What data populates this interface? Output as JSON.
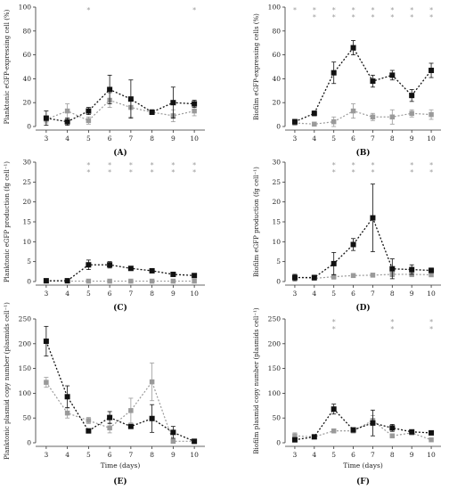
{
  "colors": {
    "black_series": "#111111",
    "gray_series": "#9a9a9a",
    "axis": "#333333"
  },
  "chart_data": [
    {
      "type": "line",
      "panel_label": "(A)",
      "ylabel": "Planktonic eGFP-expressing cell (%)",
      "xlabel": "",
      "x": [
        3,
        4,
        5,
        6,
        7,
        8,
        9,
        10
      ],
      "ylim": [
        0,
        100
      ],
      "yticks": [
        0,
        20,
        40,
        60,
        80,
        100
      ],
      "series": [
        {
          "values": [
            7,
            4,
            13,
            31,
            23,
            12,
            20,
            19
          ],
          "errors": [
            6,
            3,
            3,
            12,
            16,
            2,
            13,
            3
          ]
        },
        {
          "values": [
            6,
            13,
            5,
            22,
            16,
            12,
            9,
            13
          ],
          "errors": [
            3,
            6,
            3,
            6,
            8,
            2,
            5,
            4
          ]
        }
      ],
      "stars": [
        {
          "x": 5,
          "rows": 1,
          "colors": [
            "gray"
          ]
        },
        {
          "x": 10,
          "rows": 1,
          "colors": [
            "gray"
          ]
        }
      ]
    },
    {
      "type": "line",
      "panel_label": "(B)",
      "ylabel": "Biofilm eGFP-expressing cells (%)",
      "xlabel": "",
      "x": [
        3,
        4,
        5,
        6,
        7,
        8,
        9,
        10
      ],
      "ylim": [
        0,
        100
      ],
      "yticks": [
        0,
        20,
        40,
        60,
        80,
        100
      ],
      "series": [
        {
          "values": [
            4,
            11,
            45,
            66,
            38,
            43,
            26,
            47
          ],
          "errors": [
            2,
            2,
            9,
            6,
            5,
            4,
            5,
            6
          ]
        },
        {
          "values": [
            3,
            2,
            4,
            13,
            8,
            8,
            11,
            10
          ],
          "errors": [
            2,
            1,
            4,
            6,
            3,
            6,
            3,
            4
          ]
        }
      ],
      "stars": [
        {
          "x": 3,
          "rows": 1,
          "colors": [
            "gray"
          ]
        },
        {
          "x": 4,
          "rows": 2,
          "colors": [
            "gray",
            "gray"
          ]
        },
        {
          "x": 5,
          "rows": 2,
          "colors": [
            "gray",
            "gray"
          ]
        },
        {
          "x": 6,
          "rows": 2,
          "colors": [
            "gray",
            "gray"
          ]
        },
        {
          "x": 7,
          "rows": 2,
          "colors": [
            "gray",
            "gray"
          ]
        },
        {
          "x": 8,
          "rows": 2,
          "colors": [
            "gray",
            "gray"
          ]
        },
        {
          "x": 9,
          "rows": 2,
          "colors": [
            "gray",
            "gray"
          ]
        },
        {
          "x": 10,
          "rows": 2,
          "colors": [
            "gray",
            "gray"
          ]
        }
      ]
    },
    {
      "type": "line",
      "panel_label": "(C)",
      "ylabel": "Planktonic eGFP production (fg cell⁻¹)",
      "xlabel": "",
      "x": [
        3,
        4,
        5,
        6,
        7,
        8,
        9,
        10
      ],
      "ylim": [
        0,
        30
      ],
      "yticks": [
        0,
        5,
        10,
        15,
        20,
        25,
        30
      ],
      "series": [
        {
          "values": [
            0.2,
            0.2,
            4.2,
            4.2,
            3.3,
            2.7,
            1.8,
            1.5
          ],
          "errors": [
            0.2,
            0.2,
            1.2,
            0.8,
            0.5,
            0.4,
            0.4,
            0.3
          ]
        },
        {
          "values": [
            0.1,
            0.1,
            0.1,
            0.1,
            0.1,
            0.1,
            0.1,
            0.1
          ],
          "errors": [
            0.1,
            0.1,
            0.1,
            0.1,
            0.1,
            0.1,
            0.1,
            0.1
          ]
        }
      ],
      "stars": [
        {
          "x": 5,
          "rows": 2,
          "colors": [
            "gray",
            "gray"
          ]
        },
        {
          "x": 6,
          "rows": 2,
          "colors": [
            "gray",
            "gray"
          ]
        },
        {
          "x": 7,
          "rows": 2,
          "colors": [
            "gray",
            "gray"
          ]
        },
        {
          "x": 8,
          "rows": 2,
          "colors": [
            "gray",
            "gray"
          ]
        },
        {
          "x": 9,
          "rows": 2,
          "colors": [
            "gray",
            "gray"
          ]
        },
        {
          "x": 10,
          "rows": 2,
          "colors": [
            "gray",
            "gray"
          ]
        }
      ]
    },
    {
      "type": "line",
      "panel_label": "(D)",
      "ylabel": "Biofilm eGFP production (fg cell⁻¹)",
      "xlabel": "",
      "x": [
        3,
        4,
        5,
        6,
        7,
        8,
        9,
        10
      ],
      "ylim": [
        0,
        30
      ],
      "yticks": [
        0,
        5,
        10,
        15,
        20,
        25,
        30
      ],
      "series": [
        {
          "values": [
            1,
            1,
            4.5,
            9.3,
            16,
            3.2,
            3,
            2.8
          ],
          "errors": [
            0.8,
            0.6,
            2.8,
            1.5,
            8.5,
            2.5,
            1.2,
            0.6
          ]
        },
        {
          "values": [
            1,
            0.8,
            1.2,
            1.5,
            1.6,
            1.8,
            1.8,
            1.7
          ],
          "errors": [
            0.6,
            0.4,
            0.6,
            0.5,
            0.5,
            0.6,
            0.6,
            0.5
          ]
        }
      ],
      "stars": [
        {
          "x": 5,
          "rows": 2,
          "colors": [
            "gray",
            "gray"
          ]
        },
        {
          "x": 6,
          "rows": 2,
          "colors": [
            "gray",
            "gray"
          ]
        },
        {
          "x": 7,
          "rows": 2,
          "colors": [
            "gray",
            "gray"
          ]
        },
        {
          "x": 9,
          "rows": 2,
          "colors": [
            "gray",
            "gray"
          ]
        },
        {
          "x": 10,
          "rows": 2,
          "colors": [
            "gray",
            "gray"
          ]
        }
      ]
    },
    {
      "type": "line",
      "panel_label": "(E)",
      "ylabel": "Planktonic plasmid copy number (plasmids cell⁻¹)",
      "xlabel": "Time (days)",
      "x": [
        3,
        4,
        5,
        6,
        7,
        8,
        9,
        10
      ],
      "ylim": [
        0,
        250
      ],
      "yticks": [
        0,
        50,
        100,
        150,
        200,
        250
      ],
      "series": [
        {
          "values": [
            205,
            93,
            24,
            51,
            33,
            49,
            21,
            3
          ],
          "errors": [
            30,
            22,
            4,
            12,
            4,
            28,
            12,
            2
          ]
        },
        {
          "values": [
            122,
            60,
            45,
            30,
            65,
            123,
            3,
            3
          ],
          "errors": [
            10,
            10,
            6,
            10,
            25,
            38,
            4,
            2
          ]
        }
      ],
      "stars": []
    },
    {
      "type": "line",
      "panel_label": "(F)",
      "ylabel": "Biofilm plasmid copy number (plasmids cell⁻¹)",
      "xlabel": "Time (days)",
      "x": [
        3,
        4,
        5,
        6,
        7,
        8,
        9,
        10
      ],
      "ylim": [
        0,
        250
      ],
      "yticks": [
        0,
        50,
        100,
        150,
        200,
        250
      ],
      "series": [
        {
          "values": [
            6,
            12,
            68,
            26,
            40,
            30,
            22,
            20
          ],
          "errors": [
            4,
            4,
            10,
            4,
            26,
            7,
            2,
            3
          ]
        },
        {
          "values": [
            14,
            12,
            24,
            24,
            45,
            14,
            20,
            6
          ],
          "errors": [
            6,
            4,
            4,
            4,
            10,
            4,
            3,
            3
          ]
        }
      ],
      "stars": [
        {
          "x": 5,
          "rows": 2,
          "colors": [
            "gray",
            "gray"
          ]
        },
        {
          "x": 8,
          "rows": 2,
          "colors": [
            "gray",
            "gray"
          ]
        },
        {
          "x": 10,
          "rows": 2,
          "colors": [
            "gray",
            "gray"
          ]
        }
      ]
    }
  ]
}
